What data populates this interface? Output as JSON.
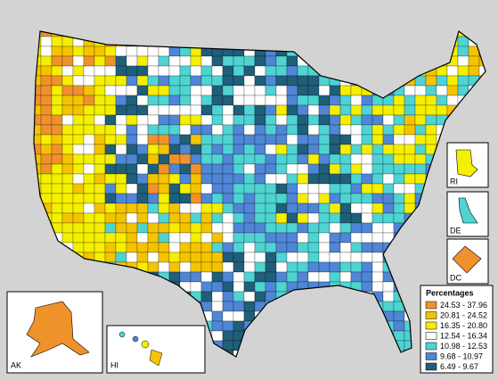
{
  "legend": {
    "title": "Percentages",
    "items": [
      {
        "label": "24.53 - 37.96",
        "color": "#f0922b"
      },
      {
        "label": "20.81 - 24.52",
        "color": "#f5c400"
      },
      {
        "label": "16.35 - 20.80",
        "color": "#f5ef00"
      },
      {
        "label": "12.54 - 16.34",
        "color": "#ffffff"
      },
      {
        "label": "10.98 - 12.53",
        "color": "#4fd3d3"
      },
      {
        "label": "9.68 - 10.97",
        "color": "#4f86d6"
      },
      {
        "label": "6.49 - 9.67",
        "color": "#1f5f7a"
      }
    ]
  },
  "insets": [
    "AK",
    "HI",
    "RI",
    "DE",
    "DC"
  ]
}
